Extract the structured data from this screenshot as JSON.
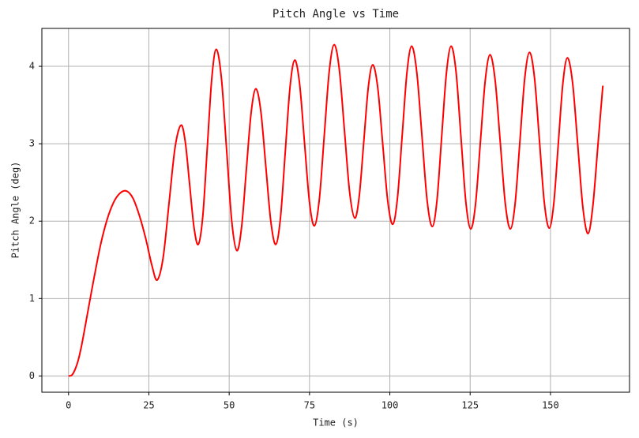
{
  "chart_data": {
    "type": "line",
    "title": "Pitch Angle vs Time",
    "x_label": "Time (s)",
    "y_label": "Pitch Angle (deg)",
    "x": [
      0,
      1,
      2,
      3,
      4,
      5,
      6,
      8,
      10,
      12,
      14,
      16,
      18,
      20,
      22,
      24,
      26,
      27.6,
      29.45,
      31.3,
      33.15,
      35,
      36.35,
      37.7,
      39.05,
      40.4,
      41.8,
      43.2,
      44.6,
      46,
      47.6,
      49.2,
      50.8,
      52.4,
      53.88,
      55.35,
      56.83,
      58.3,
      59.85,
      61.4,
      62.95,
      64.5,
      65.98,
      67.45,
      68.93,
      70.4,
      71.93,
      73.45,
      74.98,
      76.5,
      78.05,
      79.6,
      81.15,
      82.7,
      84.3,
      85.9,
      87.5,
      89.1,
      90.5,
      91.9,
      93.3,
      94.7,
      96.25,
      97.8,
      99.35,
      100.9,
      102.38,
      103.85,
      105.33,
      106.8,
      108.4,
      110,
      111.6,
      113.2,
      114.68,
      116.15,
      117.63,
      119.1,
      120.63,
      122.15,
      123.68,
      125.2,
      126.7,
      128.2,
      129.7,
      131.2,
      132.78,
      134.35,
      135.93,
      137.5,
      139,
      140.5,
      142,
      143.5,
      145.03,
      146.55,
      148.08,
      149.6,
      151.03,
      152.45,
      153.88,
      155.3,
      156.9,
      158.5,
      160.1,
      161.7,
      163.2,
      164.8,
      166.3
    ],
    "series": [
      {
        "name": "Pitch Angle",
        "color": "#ff0000",
        "values": [
          0,
          0.01,
          0.08,
          0.2,
          0.38,
          0.6,
          0.83,
          1.28,
          1.7,
          2.02,
          2.24,
          2.36,
          2.39,
          2.3,
          2.08,
          1.78,
          1.42,
          1.24,
          1.53,
          2.24,
          2.95,
          3.24,
          3.02,
          2.47,
          1.92,
          1.7,
          2.07,
          2.96,
          3.85,
          4.22,
          3.84,
          2.92,
          2.0,
          1.62,
          1.93,
          2.67,
          3.4,
          3.71,
          3.42,
          2.71,
          2.0,
          1.7,
          2.05,
          2.89,
          3.73,
          4.08,
          3.77,
          3.01,
          2.25,
          1.94,
          2.28,
          3.11,
          3.94,
          4.28,
          3.95,
          3.16,
          2.37,
          2.04,
          2.33,
          3.03,
          3.73,
          4.02,
          3.72,
          2.99,
          2.26,
          1.96,
          2.3,
          3.11,
          3.92,
          4.26,
          3.92,
          3.1,
          2.27,
          1.93,
          2.27,
          3.1,
          3.92,
          4.26,
          3.92,
          3.08,
          2.24,
          1.9,
          2.23,
          3.03,
          3.82,
          4.15,
          3.82,
          3.03,
          2.23,
          1.9,
          2.23,
          3.04,
          3.85,
          4.18,
          3.85,
          3.05,
          2.24,
          1.91,
          2.23,
          3.01,
          3.79,
          4.11,
          3.78,
          2.98,
          2.17,
          1.84,
          2.2,
          3.0,
          3.75
        ]
      }
    ],
    "xlim": [
      -8.3,
      174.6
    ],
    "ylim": [
      -0.21,
      4.49
    ],
    "xticks": [
      0,
      25,
      50,
      75,
      100,
      125,
      150
    ],
    "yticks": [
      0,
      1,
      2,
      3,
      4
    ],
    "grid": true
  }
}
